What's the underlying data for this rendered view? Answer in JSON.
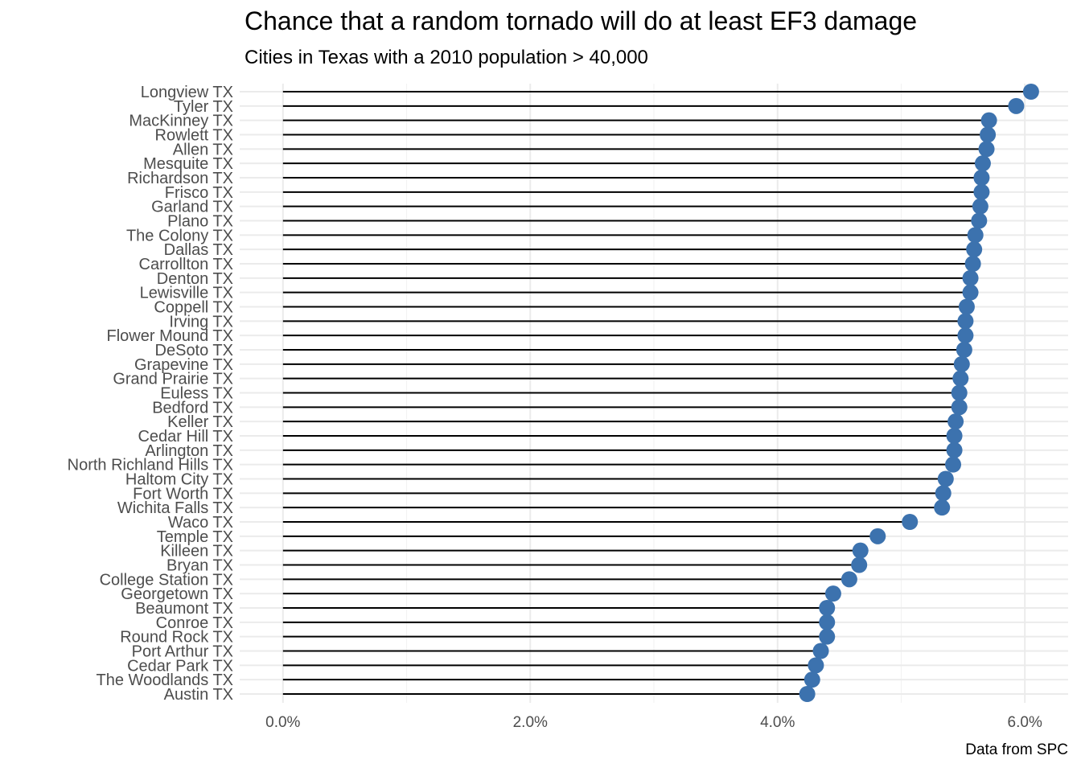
{
  "chart_data": {
    "type": "lollipop",
    "title": "Chance that a random tornado will do at least EF3 damage",
    "subtitle": "Cities in Texas with a 2010 population > 40,000",
    "caption": "Data from SPC",
    "xlabel": "",
    "ylabel": "",
    "xlim": [
      -0.0035,
      0.0635
    ],
    "x_ticks": [
      0,
      0.02,
      0.04,
      0.06
    ],
    "x_tick_labels": [
      "0.0%",
      "2.0%",
      "4.0%",
      "6.0%"
    ],
    "grid": true,
    "colors": {
      "point": "#3c72ae",
      "segment": "#000000",
      "grid_major": "#ebebeb",
      "grid_minor": "#f3f3f3"
    },
    "categories": [
      "Longview TX",
      "Tyler TX",
      "MacKinney TX",
      "Rowlett TX",
      "Allen TX",
      "Mesquite TX",
      "Richardson TX",
      "Frisco TX",
      "Garland TX",
      "Plano TX",
      "The Colony TX",
      "Dallas TX",
      "Carrollton TX",
      "Denton TX",
      "Lewisville TX",
      "Coppell TX",
      "Irving TX",
      "Flower Mound TX",
      "DeSoto TX",
      "Grapevine TX",
      "Grand Prairie TX",
      "Euless TX",
      "Bedford TX",
      "Keller TX",
      "Cedar Hill TX",
      "Arlington TX",
      "North Richland Hills TX",
      "Haltom City TX",
      "Fort Worth TX",
      "Wichita Falls TX",
      "Waco TX",
      "Temple TX",
      "Killeen TX",
      "Bryan TX",
      "College Station TX",
      "Georgetown TX",
      "Beaumont TX",
      "Conroe TX",
      "Round Rock TX",
      "Port Arthur TX",
      "Cedar Park TX",
      "The Woodlands TX",
      "Austin TX"
    ],
    "values": [
      0.0605,
      0.0593,
      0.0571,
      0.057,
      0.0569,
      0.0566,
      0.0565,
      0.0565,
      0.0564,
      0.0563,
      0.056,
      0.0559,
      0.0558,
      0.0556,
      0.0556,
      0.0553,
      0.0552,
      0.0552,
      0.0551,
      0.0549,
      0.0548,
      0.0547,
      0.0547,
      0.0544,
      0.0543,
      0.0543,
      0.0542,
      0.0536,
      0.0534,
      0.0533,
      0.0507,
      0.0481,
      0.0467,
      0.0466,
      0.0458,
      0.0445,
      0.044,
      0.044,
      0.044,
      0.0435,
      0.0431,
      0.0428,
      0.0424
    ]
  }
}
